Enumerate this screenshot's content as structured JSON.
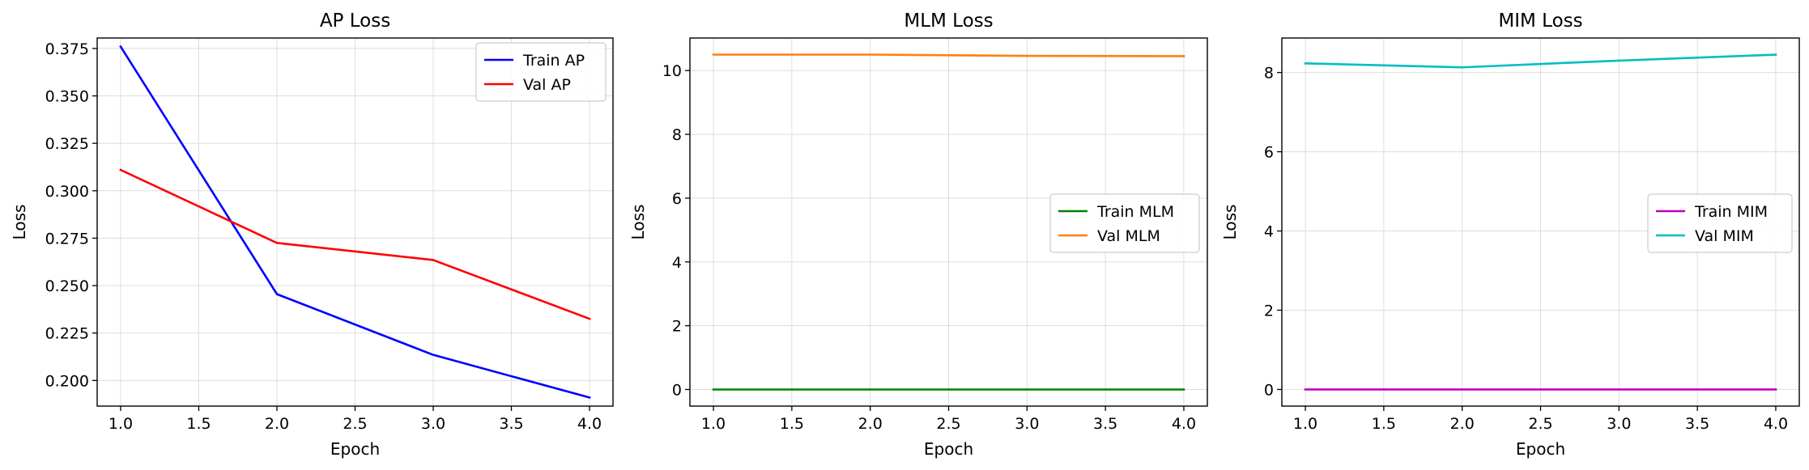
{
  "chart_data": [
    {
      "type": "line",
      "title": "AP Loss",
      "xlabel": "Epoch",
      "ylabel": "Loss",
      "xlim": [
        0.85,
        4.15
      ],
      "ylim": [
        0.1865,
        0.3805
      ],
      "xticks": [
        1.0,
        1.5,
        2.0,
        2.5,
        3.0,
        3.5,
        4.0
      ],
      "xtick_labels": [
        "1.0",
        "1.5",
        "2.0",
        "2.5",
        "3.0",
        "3.5",
        "4.0"
      ],
      "yticks": [
        0.2,
        0.225,
        0.25,
        0.275,
        0.3,
        0.325,
        0.35,
        0.375
      ],
      "ytick_labels": [
        "0.200",
        "0.225",
        "0.250",
        "0.275",
        "0.300",
        "0.325",
        "0.350",
        "0.375"
      ],
      "grid": true,
      "legend_position": "top-right",
      "x": [
        1,
        2,
        3,
        4
      ],
      "series": [
        {
          "name": "Train AP",
          "color": "#0000ff",
          "values": [
            0.376,
            0.2455,
            0.2135,
            0.191
          ]
        },
        {
          "name": "Val AP",
          "color": "#ff0000",
          "values": [
            0.311,
            0.2725,
            0.2635,
            0.2325
          ]
        }
      ]
    },
    {
      "type": "line",
      "title": "MLM Loss",
      "xlabel": "Epoch",
      "ylabel": "Loss",
      "xlim": [
        0.85,
        4.15
      ],
      "ylim": [
        -0.52,
        11.02
      ],
      "xticks": [
        1.0,
        1.5,
        2.0,
        2.5,
        3.0,
        3.5,
        4.0
      ],
      "xtick_labels": [
        "1.0",
        "1.5",
        "2.0",
        "2.5",
        "3.0",
        "3.5",
        "4.0"
      ],
      "yticks": [
        0,
        2,
        4,
        6,
        8,
        10
      ],
      "ytick_labels": [
        "0",
        "2",
        "4",
        "6",
        "8",
        "10"
      ],
      "grid": true,
      "legend_position": "center-right",
      "x": [
        1,
        2,
        3,
        4
      ],
      "series": [
        {
          "name": "Train MLM",
          "color": "#008000",
          "values": [
            0.0,
            0.0,
            0.0,
            0.0
          ]
        },
        {
          "name": "Val MLM",
          "color": "#ff7f0e",
          "values": [
            10.5,
            10.5,
            10.46,
            10.45
          ]
        }
      ]
    },
    {
      "type": "line",
      "title": "MIM Loss",
      "xlabel": "Epoch",
      "ylabel": "Loss",
      "xlim": [
        0.85,
        4.15
      ],
      "ylim": [
        -0.42,
        8.87
      ],
      "xticks": [
        1.0,
        1.5,
        2.0,
        2.5,
        3.0,
        3.5,
        4.0
      ],
      "xtick_labels": [
        "1.0",
        "1.5",
        "2.0",
        "2.5",
        "3.0",
        "3.5",
        "4.0"
      ],
      "yticks": [
        0,
        2,
        4,
        6,
        8
      ],
      "ytick_labels": [
        "0",
        "2",
        "4",
        "6",
        "8"
      ],
      "grid": true,
      "legend_position": "center-right",
      "x": [
        1,
        2,
        3,
        4
      ],
      "series": [
        {
          "name": "Train MIM",
          "color": "#bf00bf",
          "values": [
            0.0,
            0.0,
            0.0,
            0.0
          ]
        },
        {
          "name": "Val MIM",
          "color": "#00bfbf",
          "values": [
            8.23,
            8.13,
            8.3,
            8.45
          ]
        }
      ]
    }
  ]
}
